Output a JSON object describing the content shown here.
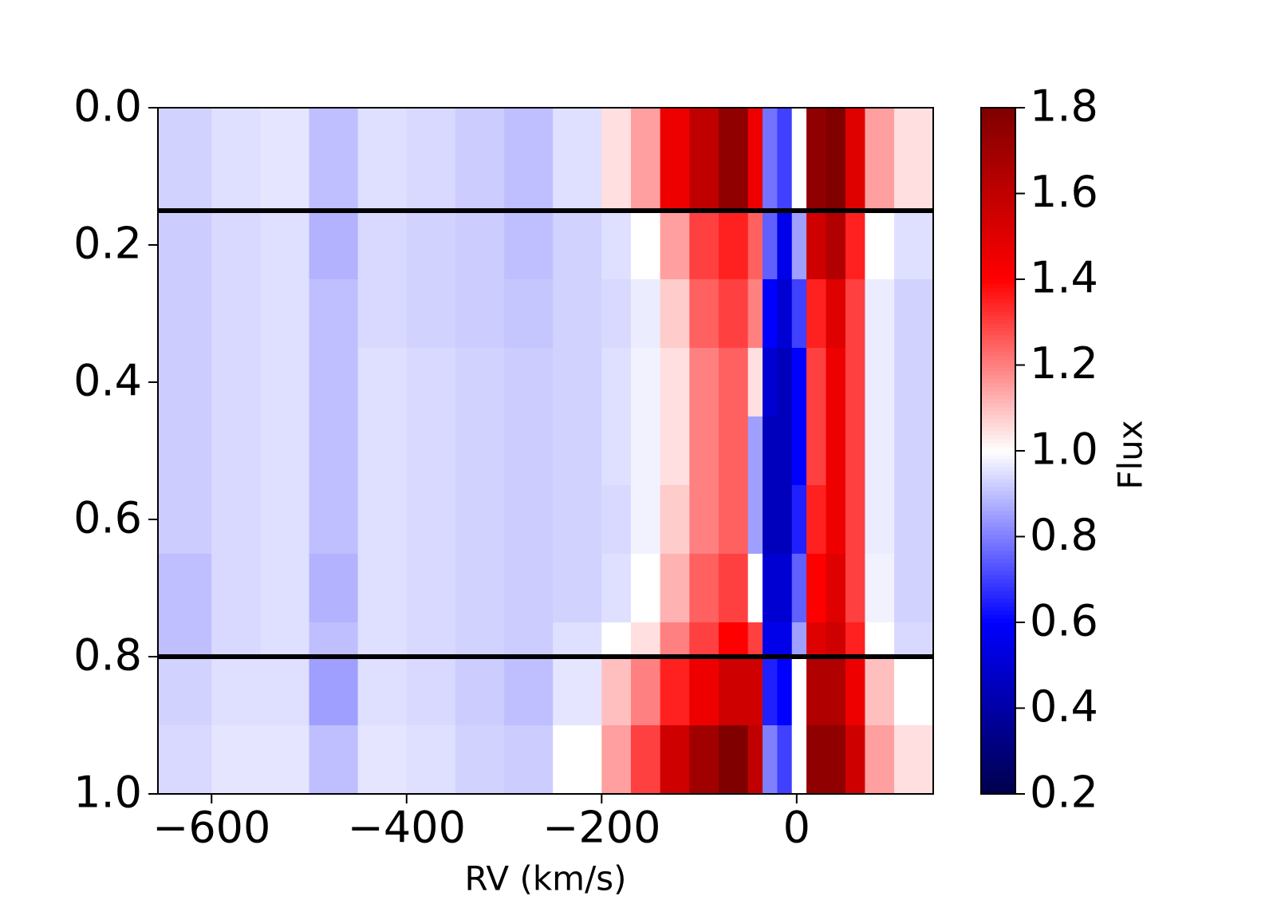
{
  "chart_data": {
    "type": "heatmap",
    "x_label": "RV (km/s)",
    "colorbar_label": "Flux",
    "x_edges": [
      -655,
      -600,
      -550,
      -500,
      -450,
      -400,
      -350,
      -300,
      -250,
      -200,
      -170,
      -140,
      -110,
      -80,
      -50,
      -35,
      -20,
      -5,
      10,
      30,
      50,
      70,
      100,
      140
    ],
    "y_edges": [
      0,
      0.15,
      0.25,
      0.35,
      0.45,
      0.55,
      0.65,
      0.75,
      0.8,
      0.9,
      1.0
    ],
    "z": [
      [
        0.93,
        0.95,
        0.96,
        0.9,
        0.95,
        0.94,
        0.92,
        0.9,
        0.95,
        1.05,
        1.15,
        1.45,
        1.6,
        1.75,
        1.45,
        0.78,
        0.7,
        1.0,
        1.75,
        1.8,
        1.5,
        1.15,
        1.05
      ],
      [
        0.92,
        0.94,
        0.95,
        0.88,
        0.94,
        0.93,
        0.92,
        0.9,
        0.93,
        0.95,
        1.0,
        1.15,
        1.3,
        1.35,
        1.25,
        0.75,
        0.55,
        0.85,
        1.55,
        1.65,
        1.35,
        1.0,
        0.95
      ],
      [
        0.92,
        0.94,
        0.95,
        0.9,
        0.94,
        0.93,
        0.92,
        0.91,
        0.93,
        0.94,
        0.97,
        1.08,
        1.25,
        1.3,
        1.2,
        0.6,
        0.5,
        0.7,
        1.35,
        1.5,
        1.3,
        0.97,
        0.93
      ],
      [
        0.92,
        0.94,
        0.95,
        0.9,
        0.95,
        0.94,
        0.93,
        0.92,
        0.93,
        0.95,
        0.98,
        1.05,
        1.2,
        1.25,
        1.05,
        0.5,
        0.45,
        0.6,
        1.3,
        1.45,
        1.3,
        0.97,
        0.93
      ],
      [
        0.92,
        0.94,
        0.95,
        0.9,
        0.95,
        0.94,
        0.93,
        0.92,
        0.93,
        0.95,
        0.98,
        1.05,
        1.2,
        1.25,
        0.85,
        0.45,
        0.45,
        0.6,
        1.3,
        1.45,
        1.3,
        0.97,
        0.93
      ],
      [
        0.92,
        0.94,
        0.95,
        0.9,
        0.95,
        0.94,
        0.93,
        0.92,
        0.93,
        0.94,
        0.98,
        1.08,
        1.2,
        1.25,
        0.85,
        0.45,
        0.45,
        0.65,
        1.35,
        1.45,
        1.3,
        0.97,
        0.93
      ],
      [
        0.9,
        0.94,
        0.95,
        0.88,
        0.95,
        0.94,
        0.93,
        0.92,
        0.93,
        0.95,
        1.0,
        1.12,
        1.25,
        1.3,
        1.0,
        0.5,
        0.5,
        0.75,
        1.4,
        1.5,
        1.3,
        0.98,
        0.93
      ],
      [
        0.9,
        0.94,
        0.95,
        0.9,
        0.95,
        0.94,
        0.93,
        0.92,
        0.95,
        1.0,
        1.05,
        1.2,
        1.3,
        1.4,
        1.3,
        0.55,
        0.55,
        0.85,
        1.5,
        1.55,
        1.35,
        1.0,
        0.94
      ],
      [
        0.93,
        0.95,
        0.95,
        0.85,
        0.95,
        0.94,
        0.92,
        0.9,
        0.96,
        1.1,
        1.2,
        1.35,
        1.45,
        1.55,
        1.55,
        0.65,
        0.6,
        1.0,
        1.65,
        1.65,
        1.45,
        1.1,
        1.0
      ],
      [
        0.94,
        0.96,
        0.96,
        0.9,
        0.96,
        0.95,
        0.93,
        0.92,
        1.0,
        1.15,
        1.3,
        1.55,
        1.7,
        1.8,
        1.6,
        0.8,
        0.7,
        1.0,
        1.75,
        1.75,
        1.55,
        1.15,
        1.05
      ]
    ],
    "xlim": [
      -655,
      140
    ],
    "xticks": [
      {
        "value": -600,
        "label": "−600"
      },
      {
        "value": -400,
        "label": "−400"
      },
      {
        "value": -200,
        "label": "−200"
      },
      0
    ],
    "ylim": [
      1,
      0
    ],
    "yticks": [
      {
        "value": 0,
        "label": "0.0"
      },
      0.2,
      0.4,
      0.6,
      0.8,
      {
        "value": 1,
        "label": "1.0"
      }
    ],
    "hlines": [
      0.15,
      0.8
    ],
    "hline_color": "#000000",
    "colormap": [
      "#00004c",
      "#0000ff",
      "#ffffff",
      "#ff0000",
      "#800000"
    ],
    "clim": [
      0.2,
      1.8
    ],
    "cticks": [
      0.2,
      0.4,
      0.6,
      0.8,
      {
        "value": 1,
        "label": "1.0"
      },
      1.2,
      1.4,
      1.6,
      1.8
    ]
  }
}
